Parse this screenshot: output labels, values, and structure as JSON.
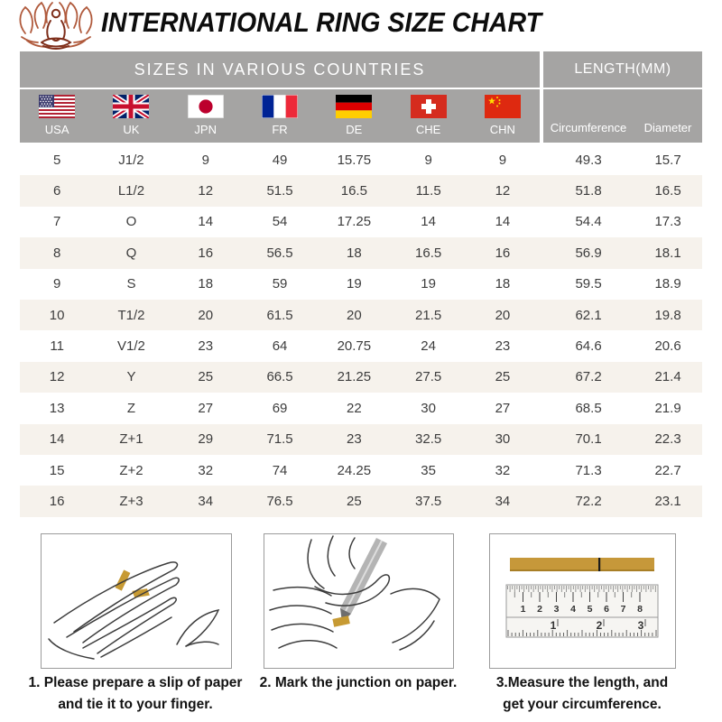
{
  "header": {
    "title": "INTERNATIONAL RING SIZE CHART"
  },
  "table": {
    "group_headers": {
      "countries": "SIZES IN VARIOUS COUNTRIES",
      "length": "LENGTH(MM)"
    },
    "country_codes": [
      "USA",
      "UK",
      "JPN",
      "FR",
      "DE",
      "CHE",
      "CHN"
    ],
    "length_columns": [
      "Circumference",
      "Diameter"
    ]
  },
  "instructions": {
    "step1_line1": "1. Please prepare a slip of paper",
    "step1_line2": "and tie it to your finger.",
    "step2": "2. Mark the junction on paper.",
    "step3_line1": "3.Measure the length, and",
    "step3_line2": "get your circumference."
  },
  "ruler": {
    "top_scale": [
      "1",
      "2",
      "3",
      "4",
      "5",
      "6",
      "7",
      "8"
    ],
    "bottom_scale": [
      "1",
      "2",
      "3"
    ]
  },
  "colors": {
    "header_gray": "#a5a4a3",
    "row_stripe": "#f6f2ec",
    "gold": "#c6983a",
    "logo_brown": "#96402a",
    "title_black": "#0d0d0d"
  },
  "chart_data": {
    "type": "table",
    "title": "INTERNATIONAL RING SIZE CHART",
    "column_groups": [
      "SIZES IN VARIOUS COUNTRIES",
      "LENGTH(MM)"
    ],
    "columns": [
      "USA",
      "UK",
      "JPN",
      "FR",
      "DE",
      "CHE",
      "CHN",
      "Circumference",
      "Diameter"
    ],
    "rows": [
      [
        "5",
        "J1/2",
        "9",
        "49",
        "15.75",
        "9",
        "9",
        "49.3",
        "15.7"
      ],
      [
        "6",
        "L1/2",
        "12",
        "51.5",
        "16.5",
        "11.5",
        "12",
        "51.8",
        "16.5"
      ],
      [
        "7",
        "O",
        "14",
        "54",
        "17.25",
        "14",
        "14",
        "54.4",
        "17.3"
      ],
      [
        "8",
        "Q",
        "16",
        "56.5",
        "18",
        "16.5",
        "16",
        "56.9",
        "18.1"
      ],
      [
        "9",
        "S",
        "18",
        "59",
        "19",
        "19",
        "18",
        "59.5",
        "18.9"
      ],
      [
        "10",
        "T1/2",
        "20",
        "61.5",
        "20",
        "21.5",
        "20",
        "62.1",
        "19.8"
      ],
      [
        "11",
        "V1/2",
        "23",
        "64",
        "20.75",
        "24",
        "23",
        "64.6",
        "20.6"
      ],
      [
        "12",
        "Y",
        "25",
        "66.5",
        "21.25",
        "27.5",
        "25",
        "67.2",
        "21.4"
      ],
      [
        "13",
        "Z",
        "27",
        "69",
        "22",
        "30",
        "27",
        "68.5",
        "21.9"
      ],
      [
        "14",
        "Z+1",
        "29",
        "71.5",
        "23",
        "32.5",
        "30",
        "70.1",
        "22.3"
      ],
      [
        "15",
        "Z+2",
        "32",
        "74",
        "24.25",
        "35",
        "32",
        "71.3",
        "22.7"
      ],
      [
        "16",
        "Z+3",
        "34",
        "76.5",
        "25",
        "37.5",
        "34",
        "72.2",
        "23.1"
      ]
    ]
  }
}
